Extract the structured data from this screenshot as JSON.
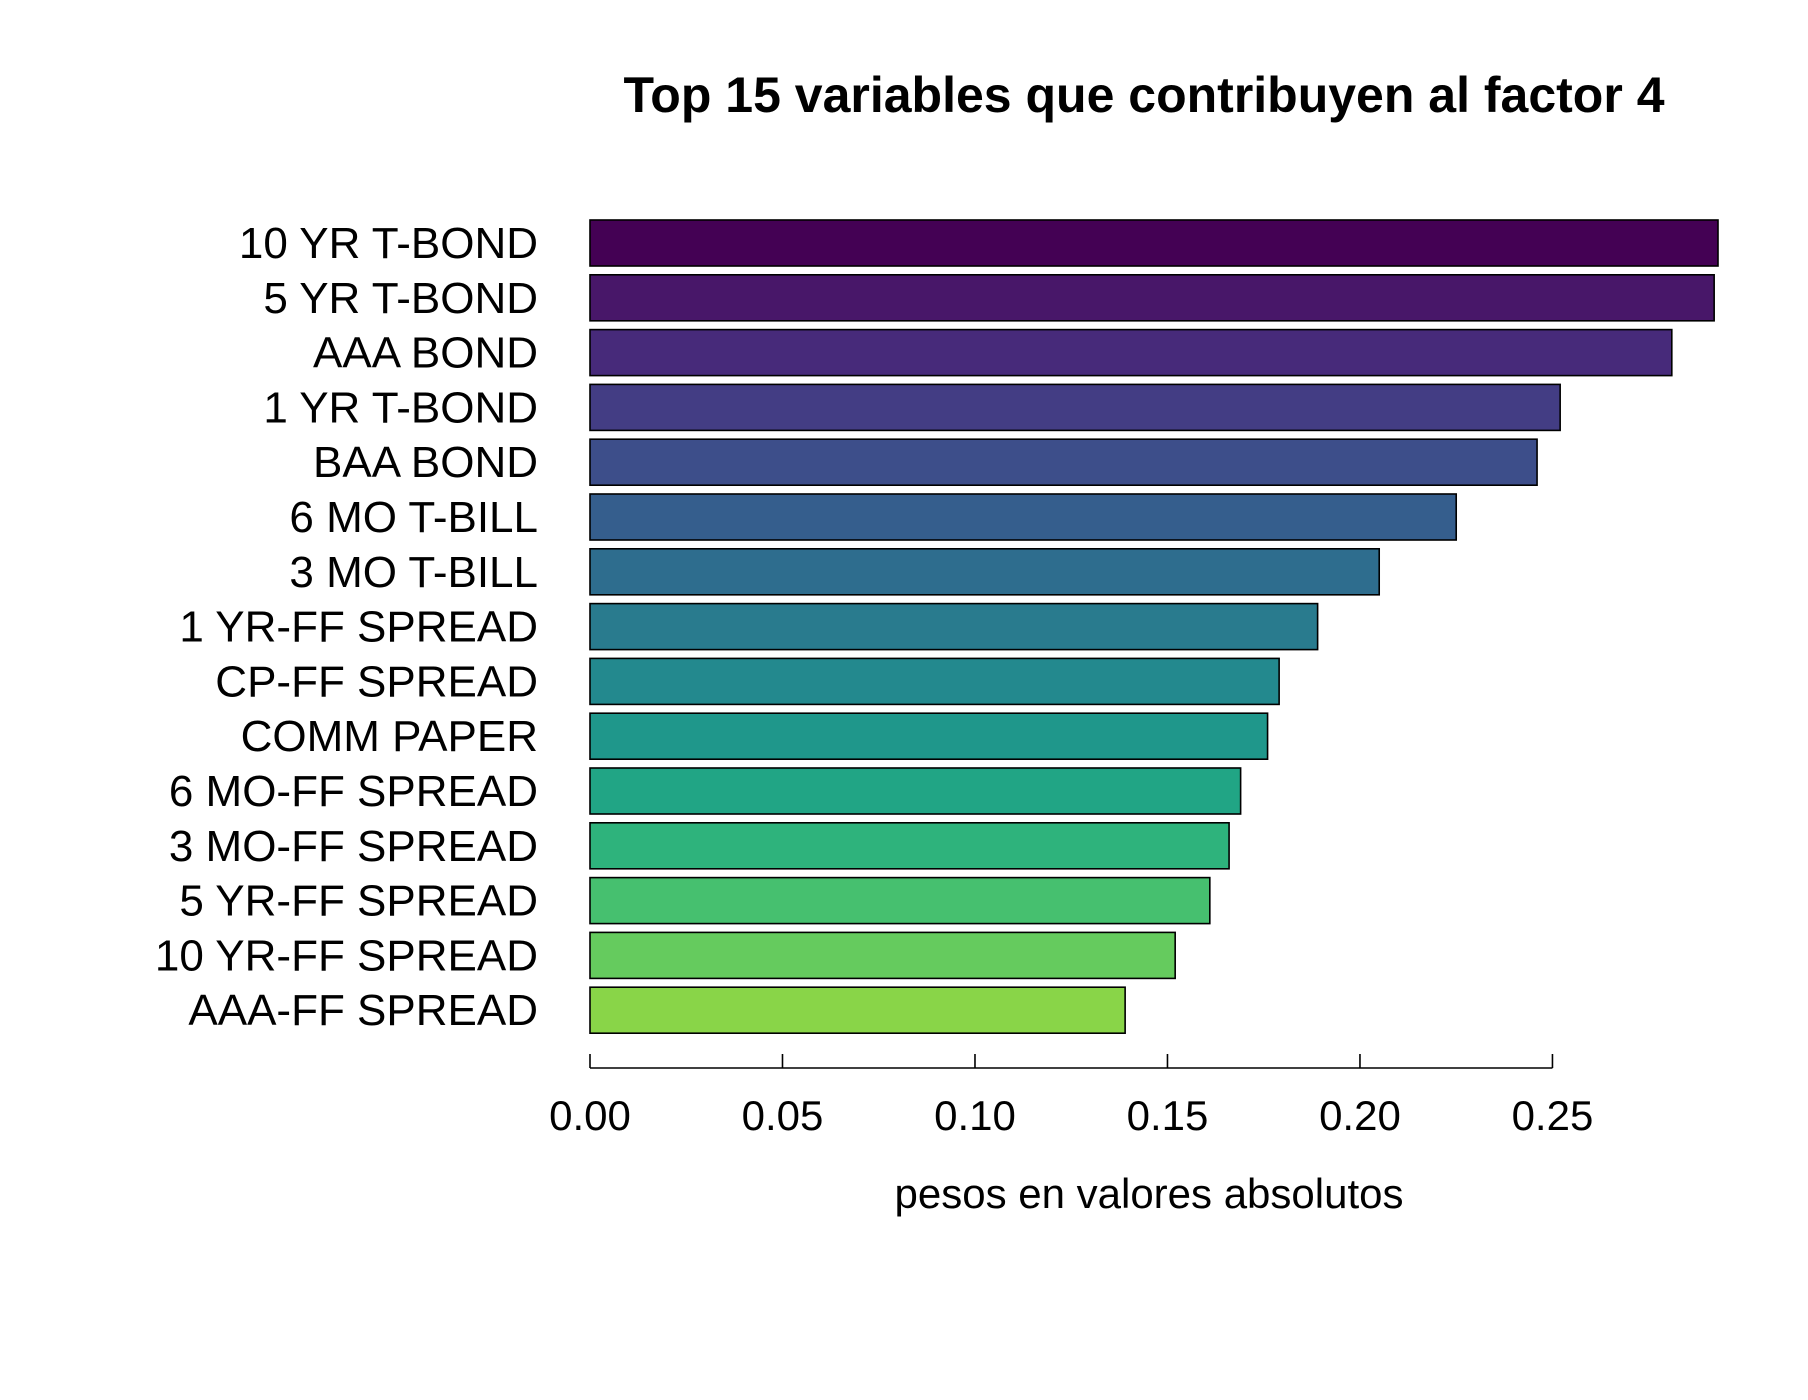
{
  "chart_data": {
    "type": "bar",
    "orientation": "horizontal",
    "title": "Top 15 variables que contribuyen al factor 4",
    "xlabel": "pesos en valores absolutos",
    "ylabel": "",
    "xlim": [
      0,
      0.293
    ],
    "xticks": [
      0.0,
      0.05,
      0.1,
      0.15,
      0.2,
      0.25
    ],
    "xtick_labels": [
      "0.00",
      "0.05",
      "0.10",
      "0.15",
      "0.20",
      "0.25"
    ],
    "grid": false,
    "legend": "none",
    "categories": [
      "10 YR T-BOND",
      "5 YR T-BOND",
      "AAA BOND",
      "1 YR T-BOND",
      "BAA BOND",
      "6 MO T-BILL",
      "3 MO T-BILL",
      "1 YR-FF SPREAD",
      "CP-FF SPREAD",
      "COMM PAPER",
      "6 MO-FF SPREAD",
      "3 MO-FF SPREAD",
      "5 YR-FF SPREAD",
      "10 YR-FF SPREAD",
      "AAA-FF SPREAD"
    ],
    "values": [
      0.293,
      0.292,
      0.281,
      0.252,
      0.246,
      0.225,
      0.205,
      0.189,
      0.179,
      0.176,
      0.169,
      0.166,
      0.161,
      0.152,
      0.139
    ],
    "colors": [
      "#440154",
      "#481769",
      "#472A7A",
      "#433D84",
      "#3D4E8A",
      "#355E8D",
      "#2E6D8E",
      "#297B8E",
      "#23898E",
      "#1F978B",
      "#21A585",
      "#2EB37C",
      "#46C06F",
      "#65CB5E",
      "#89D548"
    ],
    "bar_color_scale": "viridis"
  }
}
